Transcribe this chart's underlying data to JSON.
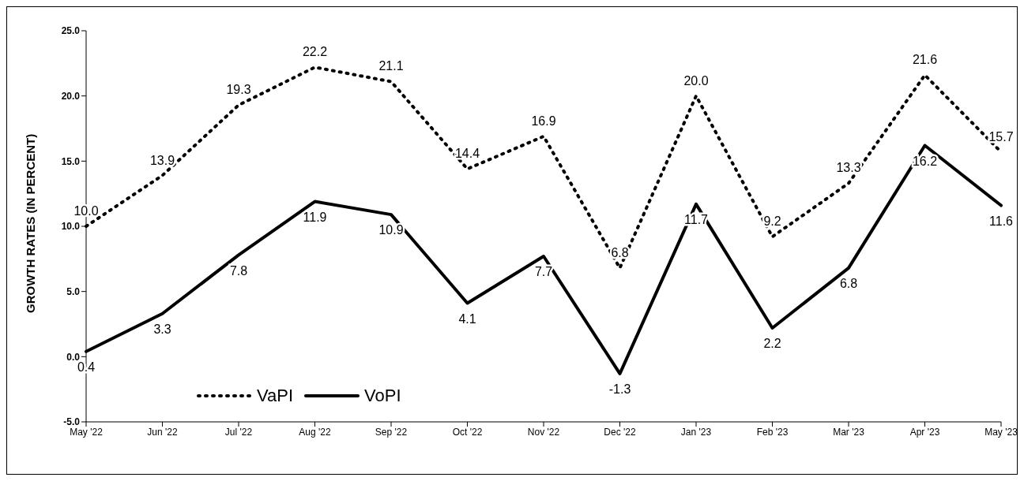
{
  "chart_data": {
    "type": "line",
    "ylabel": "GROWTH RATES (IN PERCENT)",
    "categories": [
      "May '22",
      "Jun '22",
      "Jul '22",
      "Aug '22",
      "Sep '22",
      "Oct '22",
      "Nov '22",
      "Dec '22",
      "Jan '23",
      "Feb '23",
      "Mar '23",
      "Apr '23",
      "May '23"
    ],
    "series": [
      {
        "name": "VaPI",
        "color": "#000000",
        "line_style": "dotted",
        "values": [
          10.0,
          13.9,
          19.3,
          22.2,
          21.1,
          14.4,
          16.9,
          6.8,
          20.0,
          9.2,
          13.3,
          21.6,
          15.7
        ],
        "value_labels": [
          "10.0",
          "13.9",
          "19.3",
          "22.2",
          "21.1",
          "14.4",
          "16.9",
          "6.8",
          "20.0",
          "9.2",
          "13.3",
          "21.6",
          "15.7"
        ]
      },
      {
        "name": "VoPI",
        "color": "#000000",
        "line_style": "solid",
        "values": [
          0.4,
          3.3,
          7.8,
          11.9,
          10.9,
          4.1,
          7.7,
          -1.3,
          11.7,
          2.2,
          6.8,
          16.2,
          11.6
        ],
        "value_labels": [
          "0.4",
          "3.3",
          "7.8",
          "11.9",
          "10.9",
          "4.1",
          "7.7",
          "-1.3",
          "11.7",
          "2.2",
          "6.8",
          "16.2",
          "11.6"
        ]
      }
    ],
    "ylim": [
      -5,
      25
    ],
    "yticks": [
      {
        "value": -5,
        "label": "-5.0"
      },
      {
        "value": 0,
        "label": "0.0"
      },
      {
        "value": 5,
        "label": "5.0"
      },
      {
        "value": 10,
        "label": "10.0"
      },
      {
        "value": 15,
        "label": "15.0"
      },
      {
        "value": 20,
        "label": "20.0"
      },
      {
        "value": 25,
        "label": "25.0"
      }
    ],
    "grid": false,
    "legend": "bottom left",
    "marker": "none"
  }
}
